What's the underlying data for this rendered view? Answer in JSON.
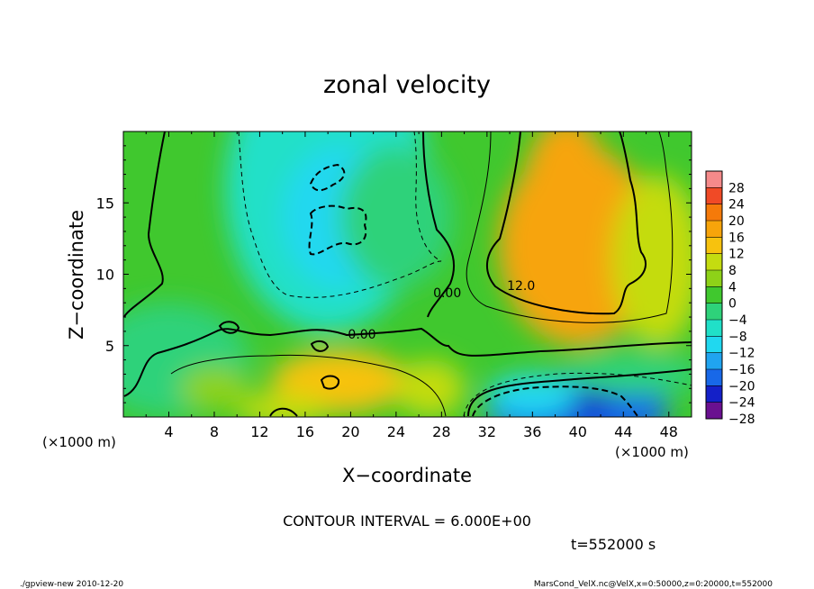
{
  "chart_data": {
    "type": "heatmap",
    "title": "zonal velocity",
    "xlabel": "X−coordinate",
    "ylabel": "Z−coordinate",
    "x_units": "(×1000 m)",
    "y_units": "(×1000 m)",
    "xlim": [
      0,
      50
    ],
    "ylim": [
      0,
      20
    ],
    "x_ticks": [
      "4",
      "8",
      "12",
      "16",
      "20",
      "24",
      "28",
      "32",
      "36",
      "40",
      "44",
      "48"
    ],
    "x_tick_values": [
      4,
      8,
      12,
      16,
      20,
      24,
      28,
      32,
      36,
      40,
      44,
      48
    ],
    "y_ticks": [
      "5",
      "10",
      "15"
    ],
    "y_tick_values": [
      5,
      10,
      15
    ],
    "colorbar": {
      "labels": [
        "28",
        "24",
        "20",
        "16",
        "12",
        "8",
        "4",
        "0",
        "−4",
        "−8",
        "−12",
        "−16",
        "−20",
        "−24",
        "−28"
      ],
      "levels": [
        28,
        24,
        20,
        16,
        12,
        8,
        4,
        0,
        -4,
        -8,
        -12,
        -16,
        -20,
        -24,
        -28
      ],
      "colors": [
        "#f58a8a",
        "#f04a26",
        "#f57a0a",
        "#f7a40a",
        "#f7c20e",
        "#c4dc10",
        "#8ed218",
        "#40c82e",
        "#2ed27a",
        "#20e0c8",
        "#20d8f0",
        "#20a4f0",
        "#1868e8",
        "#1420c8",
        "#6a1090"
      ]
    },
    "contour_labels": [
      {
        "text": "0.00",
        "x": 21,
        "y": 5.8
      },
      {
        "text": "0.00",
        "x": 28.5,
        "y": 8.7
      },
      {
        "text": "12.0",
        "x": 35,
        "y": 9.2
      }
    ],
    "contour_interval_text": "CONTOUR INTERVAL = 6.000E+00",
    "field_blobs": [
      {
        "x": 18,
        "y": 16,
        "rx": 9,
        "ry": 10,
        "v": -9
      },
      {
        "x": 19,
        "y": 14,
        "rx": 5,
        "ry": 5,
        "v": -11
      },
      {
        "x": 19.5,
        "y": 17.2,
        "rx": 1.8,
        "ry": 1,
        "v": -12
      },
      {
        "x": 24,
        "y": 14,
        "rx": 5,
        "ry": 5,
        "v": -5
      },
      {
        "x": 4,
        "y": 4,
        "rx": 7,
        "ry": 4,
        "v": -3
      },
      {
        "x": 40,
        "y": 12,
        "rx": 7,
        "ry": 7,
        "v": 14
      },
      {
        "x": 39,
        "y": 15,
        "rx": 4,
        "ry": 6,
        "v": 17
      },
      {
        "x": 40,
        "y": 10,
        "rx": 4,
        "ry": 2.5,
        "v": 16
      },
      {
        "x": 47,
        "y": 11,
        "rx": 4,
        "ry": 6,
        "v": 6
      },
      {
        "x": 40,
        "y": 0.5,
        "rx": 8,
        "ry": 2.5,
        "v": -20
      },
      {
        "x": 40,
        "y": 1,
        "rx": 3,
        "ry": 1.2,
        "v": -25
      },
      {
        "x": 36,
        "y": 1.5,
        "rx": 4,
        "ry": 1.5,
        "v": -14
      },
      {
        "x": 19,
        "y": 2.5,
        "rx": 6,
        "ry": 2.2,
        "v": 10
      },
      {
        "x": 18,
        "y": 2.4,
        "rx": 2,
        "ry": 1,
        "v": 13
      },
      {
        "x": 27,
        "y": 2,
        "rx": 3,
        "ry": 2,
        "v": 7
      },
      {
        "x": 14,
        "y": 0.5,
        "rx": 4,
        "ry": 1.2,
        "v": 9
      },
      {
        "x": 8,
        "y": 2,
        "rx": 3,
        "ry": 1.5,
        "v": 4
      },
      {
        "x": 45,
        "y": 3,
        "rx": 6,
        "ry": 1.5,
        "v": -6
      }
    ]
  },
  "footer": {
    "time": "t=552000 s",
    "program": "./gpview-new  2010-12-20",
    "source": "MarsCond_VelX.nc@VelX,x=0:50000,z=0:20000,t=552000"
  }
}
